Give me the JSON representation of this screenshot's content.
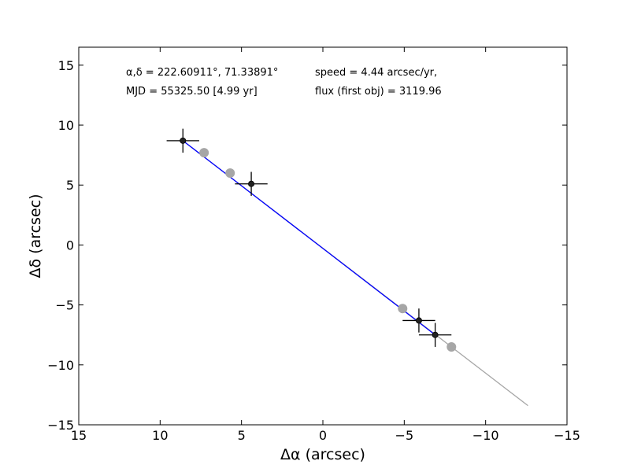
{
  "chart_data": {
    "type": "scatter",
    "title": "",
    "xlabel": "Δα (arcsec)",
    "ylabel": "Δδ (arcsec)",
    "xlim": [
      15,
      -15
    ],
    "ylim": [
      -15,
      16.5
    ],
    "x_ticks": [
      15,
      10,
      5,
      0,
      -5,
      -10,
      -15
    ],
    "y_ticks": [
      -15,
      -10,
      -5,
      0,
      5,
      10,
      15
    ],
    "x_tick_labels": [
      "15",
      "10",
      "5",
      "0",
      "−5",
      "−10",
      "−15"
    ],
    "y_tick_labels": [
      "−15",
      "−10",
      "−5",
      "0",
      "5",
      "10",
      "15"
    ],
    "grid": false,
    "annotations": {
      "coords": "α,δ = 222.60911°, 71.33891°",
      "speed": "speed = 4.44 arcsec/yr,",
      "mjd": "MJD = 55325.50 [4.99 yr]",
      "flux": "flux (first obj) = 3119.96"
    },
    "series": [
      {
        "kind": "observed",
        "points": [
          {
            "x": 8.6,
            "y": 8.7,
            "xerr": 1.0,
            "yerr": 1.0
          },
          {
            "x": 4.4,
            "y": 5.1,
            "xerr": 1.0,
            "yerr": 1.0
          },
          {
            "x": -5.9,
            "y": -6.3,
            "xerr": 1.0,
            "yerr": 1.0
          },
          {
            "x": -6.9,
            "y": -7.5,
            "xerr": 1.0,
            "yerr": 1.0
          }
        ],
        "color": "#000000"
      },
      {
        "kind": "observed-fit",
        "line": [
          {
            "x": 8.6,
            "y": 8.7
          },
          {
            "x": -6.9,
            "y": -7.5
          }
        ],
        "color": "#0000ff"
      },
      {
        "kind": "model",
        "points": [
          {
            "x": 7.3,
            "y": 7.7
          },
          {
            "x": 5.7,
            "y": 6.0
          },
          {
            "x": -4.9,
            "y": -5.3
          },
          {
            "x": -7.9,
            "y": -8.5
          }
        ],
        "line": [
          {
            "x": 8.6,
            "y": 8.7
          },
          {
            "x": -12.6,
            "y": -13.4
          }
        ],
        "color": "#a6a6a6"
      }
    ]
  }
}
